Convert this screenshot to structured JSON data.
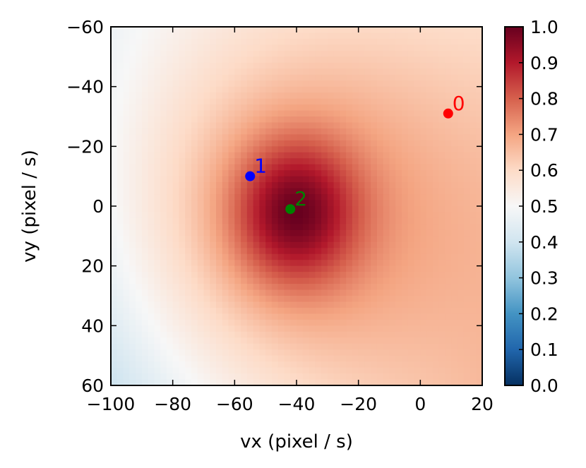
{
  "chart_data": {
    "type": "heatmap",
    "title": "",
    "xlabel": "vx (pixel / s)",
    "ylabel": "vy (pixel / s)",
    "xlim": [
      -100,
      20
    ],
    "ylim": [
      60,
      -60
    ],
    "y_inverted": true,
    "x_ticks": [
      -100,
      -80,
      -60,
      -40,
      -20,
      0,
      20
    ],
    "y_ticks": [
      -60,
      -40,
      -20,
      0,
      20,
      40,
      60
    ],
    "x_tick_labels": [
      "−100",
      "−80",
      "−60",
      "−40",
      "−20",
      "0",
      "20"
    ],
    "y_tick_labels": [
      "−60",
      "−40",
      "−20",
      "0",
      "20",
      "40",
      "60"
    ],
    "colormap": "RdBu_r",
    "colorbar": {
      "range": [
        0.0,
        1.0
      ],
      "ticks": [
        0.0,
        0.1,
        0.2,
        0.3,
        0.4,
        0.5,
        0.6,
        0.7,
        0.8,
        0.9,
        1.0
      ],
      "tick_labels": [
        "0.0",
        "0.1",
        "0.2",
        "0.3",
        "0.4",
        "0.5",
        "0.6",
        "0.7",
        "0.8",
        "0.9",
        "1.0"
      ]
    },
    "field": {
      "peak": {
        "vx": -40,
        "vy": 2,
        "value": 1.0
      },
      "corner_values": {
        "top_left": 0.43,
        "top_right": 0.56,
        "bottom_left": 0.33,
        "bottom_right": 0.63
      }
    },
    "markers": [
      {
        "label": "0",
        "vx": 9,
        "vy": -31,
        "color": "#ff0000"
      },
      {
        "label": "1",
        "vx": -55,
        "vy": -10,
        "color": "#0000ff"
      },
      {
        "label": "2",
        "vx": -42,
        "vy": 1,
        "color": "#008000"
      }
    ]
  }
}
